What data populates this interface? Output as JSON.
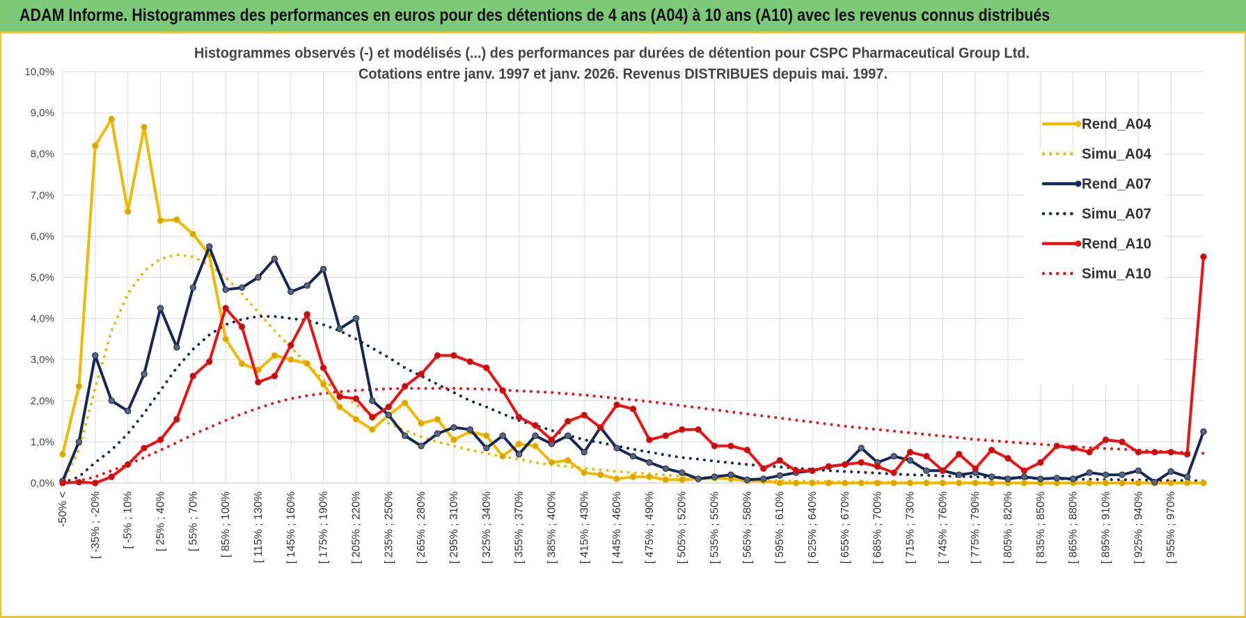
{
  "header": {
    "title": "ADAM Informe. Histogrammes des performances en euros pour des détentions de 4 ans (A04) à 10 ans (A10) avec les revenus connus distribués"
  },
  "colors": {
    "A04": "#f5b800",
    "A07": "#152856",
    "A10": "#ee1111",
    "banner": "#7dc97a",
    "frame": "#f2c028"
  },
  "chart_data": {
    "type": "line",
    "title": "Histogrammes observés (-) et modélisés (...) des performances par durées de détention pour CSPC Pharmaceutical Group Ltd.",
    "subtitle": "Cotations entre janv. 1997 et janv. 2026. Revenus DISTRIBUES depuis mai. 1997.",
    "ylim": [
      0,
      10
    ],
    "yticks": [
      "0,0%",
      "1,0%",
      "2,0%",
      "3,0%",
      "4,0%",
      "5,0%",
      "6,0%",
      "7,0%",
      "8,0%",
      "9,0%",
      "10,0%"
    ],
    "legend_position": "right",
    "grid": true,
    "x_labels": [
      "-50% <",
      "[ -35% ; -20%",
      "[ -5% ; 10%",
      "[ 25% ; 40%",
      "[ 55% ; 70%",
      "[ 85% ; 100%",
      "[ 115% ; 130%",
      "[ 145% ; 160%",
      "[ 175% ; 190%",
      "[ 205% ; 220%",
      "[ 235% ; 250%",
      "[ 265% ; 280%",
      "[ 295% ; 310%",
      "[ 325% ; 340%",
      "[ 355% ; 370%",
      "[ 385% ; 400%",
      "[ 415% ; 430%",
      "[ 445% ; 460%",
      "[ 475% ; 490%",
      "[ 505% ; 520%",
      "[ 535% ; 550%",
      "[ 565% ; 580%",
      "[ 595% ; 610%",
      "[ 625% ; 640%",
      "[ 655% ; 670%",
      "[ 685% ; 700%",
      "[ 715% ; 730%",
      "[ 745% ; 760%",
      "[ 775% ; 790%",
      "[ 805% ; 820%",
      "[ 835% ; 850%",
      "[ 865% ; 880%",
      "[ 895% ; 910%",
      "[ 925% ; 940%",
      "[ 955% ; 970%"
    ],
    "series": [
      {
        "name": "Rend_A04",
        "style": "solid",
        "color": "#f5b800",
        "values": [
          0.7,
          2.35,
          8.2,
          8.85,
          6.6,
          8.65,
          6.38,
          6.4,
          6.05,
          5.55,
          3.5,
          2.9,
          2.75,
          3.1,
          3.0,
          2.9,
          2.4,
          1.85,
          1.55,
          1.3,
          1.65,
          1.95,
          1.45,
          1.55,
          1.05,
          1.25,
          1.15,
          0.65,
          0.95,
          0.9,
          0.5,
          0.55,
          0.25,
          0.2,
          0.1,
          0.15,
          0.15,
          0.08,
          0.08,
          0.1,
          0.12,
          0.1,
          0.05,
          0.05,
          0.0,
          0.0,
          0.0,
          0.0,
          0.0,
          0.0,
          0.0,
          0.0,
          0.0,
          0.0,
          0.0,
          0.0,
          0.0,
          0.0,
          0.0,
          0.0,
          0.0,
          0.0,
          0.0,
          0.0,
          0.0,
          0.0,
          0.0,
          0.0,
          0.0,
          0.0,
          0.0
        ]
      },
      {
        "name": "Simu_A04",
        "style": "dotted",
        "color": "#f5b800",
        "values": [
          0.0,
          0.8,
          2.3,
          3.7,
          4.6,
          5.15,
          5.45,
          5.55,
          5.5,
          5.3,
          5.0,
          4.6,
          4.15,
          3.7,
          3.3,
          2.9,
          2.5,
          2.2,
          1.9,
          1.65,
          1.45,
          1.28,
          1.12,
          1.0,
          0.9,
          0.8,
          0.72,
          0.64,
          0.58,
          0.5,
          0.44,
          0.4,
          0.36,
          0.32,
          0.28,
          0.25,
          0.22,
          0.19,
          0.16,
          0.14,
          0.12,
          0.1,
          0.08,
          0.07,
          0.06,
          0.05,
          0.04,
          0.03,
          0.03,
          0.02,
          0.02,
          0.02,
          0.01,
          0.01,
          0.01,
          0.01,
          0.01,
          0.0,
          0.0,
          0.0,
          0.0,
          0.0,
          0.0,
          0.0,
          0.0,
          0.0,
          0.0,
          0.0,
          0.0,
          0.0,
          0.0
        ]
      },
      {
        "name": "Rend_A07",
        "style": "solid",
        "color": "#152856",
        "values": [
          0.05,
          1.0,
          3.1,
          2.0,
          1.75,
          2.65,
          4.25,
          3.3,
          4.75,
          5.75,
          4.7,
          4.75,
          5.0,
          5.45,
          4.65,
          4.8,
          5.2,
          3.75,
          4.0,
          2.0,
          1.65,
          1.15,
          0.9,
          1.2,
          1.35,
          1.3,
          0.85,
          1.15,
          0.7,
          1.15,
          0.95,
          1.15,
          0.75,
          1.35,
          0.85,
          0.65,
          0.5,
          0.35,
          0.25,
          0.1,
          0.15,
          0.2,
          0.08,
          0.1,
          0.18,
          0.25,
          0.3,
          0.4,
          0.45,
          0.85,
          0.5,
          0.65,
          0.55,
          0.3,
          0.3,
          0.2,
          0.25,
          0.15,
          0.1,
          0.15,
          0.1,
          0.12,
          0.1,
          0.25,
          0.2,
          0.2,
          0.3,
          0.02,
          0.28,
          0.15,
          1.25
        ]
      },
      {
        "name": "Simu_A07",
        "style": "dotted",
        "color": "#152856",
        "values": [
          0.0,
          0.15,
          0.5,
          0.8,
          1.2,
          1.7,
          2.25,
          2.8,
          3.25,
          3.6,
          3.85,
          3.98,
          4.05,
          4.05,
          4.0,
          3.95,
          3.85,
          3.7,
          3.5,
          3.28,
          3.05,
          2.8,
          2.6,
          2.4,
          2.2,
          2.0,
          1.85,
          1.68,
          1.52,
          1.4,
          1.28,
          1.16,
          1.05,
          0.98,
          0.9,
          0.82,
          0.75,
          0.68,
          0.62,
          0.58,
          0.53,
          0.49,
          0.45,
          0.42,
          0.39,
          0.36,
          0.33,
          0.3,
          0.28,
          0.26,
          0.24,
          0.22,
          0.2,
          0.19,
          0.17,
          0.16,
          0.15,
          0.14,
          0.13,
          0.12,
          0.11,
          0.1,
          0.09,
          0.09,
          0.08,
          0.08,
          0.07,
          0.07,
          0.06,
          0.06,
          0.05
        ]
      },
      {
        "name": "Rend_A10",
        "style": "solid",
        "color": "#ee1111",
        "values": [
          0.0,
          0.02,
          0.0,
          0.15,
          0.45,
          0.85,
          1.05,
          1.55,
          2.6,
          2.95,
          4.25,
          3.8,
          2.45,
          2.6,
          3.35,
          4.1,
          2.8,
          2.1,
          2.05,
          1.6,
          1.85,
          2.35,
          2.65,
          3.1,
          3.1,
          2.95,
          2.8,
          2.25,
          1.6,
          1.4,
          1.05,
          1.5,
          1.65,
          1.35,
          1.9,
          1.8,
          1.05,
          1.15,
          1.3,
          1.3,
          0.9,
          0.9,
          0.8,
          0.35,
          0.55,
          0.3,
          0.3,
          0.4,
          0.45,
          0.5,
          0.4,
          0.25,
          0.75,
          0.65,
          0.3,
          0.7,
          0.35,
          0.8,
          0.6,
          0.3,
          0.5,
          0.9,
          0.85,
          0.75,
          1.05,
          1.0,
          0.75,
          0.75,
          0.75,
          0.7,
          5.5
        ]
      },
      {
        "name": "Simu_A10",
        "style": "dotted",
        "color": "#ee1111",
        "values": [
          0.0,
          0.05,
          0.15,
          0.3,
          0.45,
          0.62,
          0.8,
          0.98,
          1.18,
          1.35,
          1.52,
          1.68,
          1.82,
          1.95,
          2.05,
          2.12,
          2.18,
          2.22,
          2.25,
          2.27,
          2.29,
          2.3,
          2.3,
          2.3,
          2.3,
          2.29,
          2.28,
          2.26,
          2.24,
          2.22,
          2.2,
          2.17,
          2.14,
          2.1,
          2.06,
          2.02,
          1.98,
          1.93,
          1.88,
          1.83,
          1.78,
          1.73,
          1.68,
          1.63,
          1.58,
          1.53,
          1.48,
          1.43,
          1.38,
          1.34,
          1.3,
          1.26,
          1.22,
          1.18,
          1.14,
          1.1,
          1.06,
          1.03,
          1.0,
          0.97,
          0.94,
          0.91,
          0.88,
          0.86,
          0.84,
          0.82,
          0.8,
          0.78,
          0.76,
          0.74,
          0.72
        ]
      }
    ]
  }
}
